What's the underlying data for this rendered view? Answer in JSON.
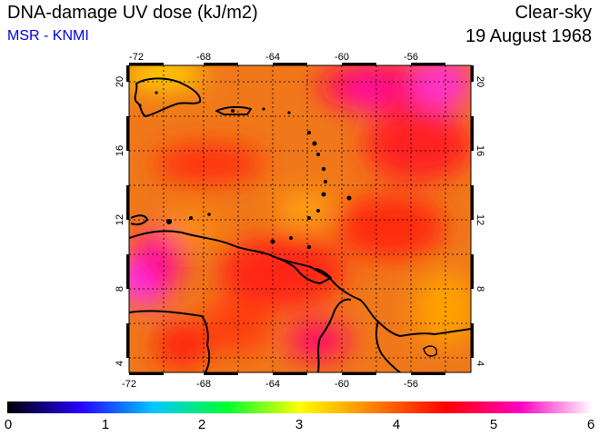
{
  "header": {
    "title": "DNA-damage UV dose (kJ/m2)",
    "subtitle": "MSR - KNMI",
    "sky_condition": "Clear-sky",
    "date": "19 August 1968"
  },
  "map": {
    "lon_ticks": [
      "-72",
      "-68",
      "-64",
      "-60",
      "-56"
    ],
    "lat_ticks": [
      "4",
      "8",
      "12",
      "16",
      "20"
    ],
    "lon_range": [
      -72,
      -52
    ],
    "lat_range": [
      3.5,
      20.5
    ],
    "dominant_color": "#f07810",
    "high_color": "#ff1080",
    "peak_color": "#ff30ff",
    "coastline_color": "#000000"
  },
  "colorbar": {
    "labels": [
      "0",
      "1",
      "2",
      "3",
      "4",
      "5",
      "6"
    ],
    "range": [
      0,
      6
    ],
    "stops": [
      "#000000",
      "#2800ff",
      "#00c8ff",
      "#00ff30",
      "#ffff00",
      "#ff8000",
      "#ff0000",
      "#ff00c0",
      "#ffffff"
    ]
  }
}
